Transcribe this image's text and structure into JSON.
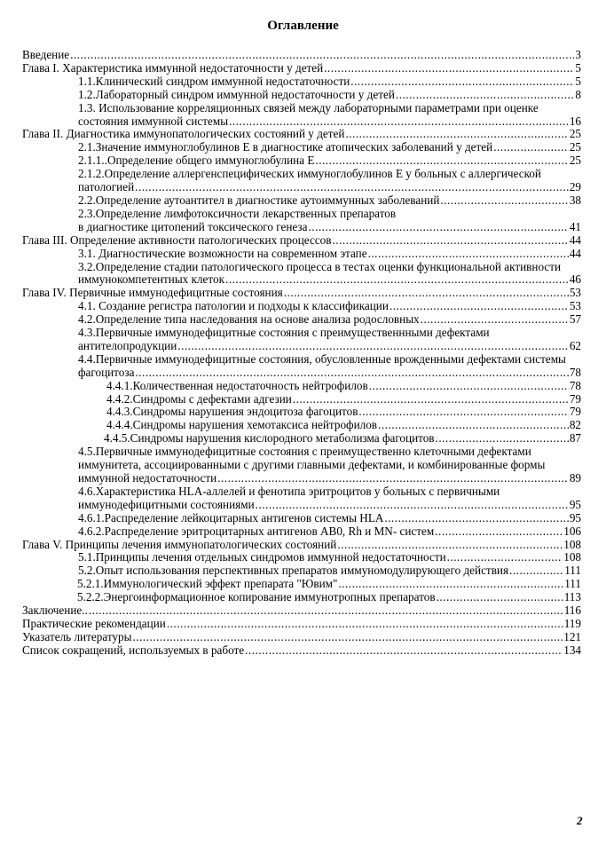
{
  "title": "Оглавление",
  "page_number": "2",
  "entries": [
    {
      "level": 1,
      "lines": [
        "Введение"
      ],
      "page": "3"
    },
    {
      "level": 1,
      "lines": [
        "Глава I. Характеристика иммунной недостаточности у детей"
      ],
      "page": "5"
    },
    {
      "level": 2,
      "lines": [
        "1.1.Клинический  синдром  иммунной  недостаточности"
      ],
      "page": "5"
    },
    {
      "level": 2,
      "lines": [
        "1.2.Лабораторный синдром иммунной недостаточности у детей"
      ],
      "page": "8"
    },
    {
      "level": 2,
      "lines": [
        "1.3. Использование корреляционных связей между лабораторными параметрами при оценке",
        "состояния иммунной системы"
      ],
      "page": "16"
    },
    {
      "level": 1,
      "lines": [
        "Глава II. Диагностика иммунопатологических состояний у детей "
      ],
      "page": "25"
    },
    {
      "level": 2,
      "lines": [
        "2.1.Значение иммуноглобулинов Е в диагностике атопических заболеваний у детей"
      ],
      "page": "25"
    },
    {
      "level": 2,
      "lines": [
        "2.1.1..Определение общего иммуноглобулина Е"
      ],
      "page": "25"
    },
    {
      "level": 2,
      "lines": [
        "2.1.2.Определение аллергенспецифических иммуноглобулинов Е у больных с аллергической",
        "патологией"
      ],
      "page": "29"
    },
    {
      "level": 2,
      "lines": [
        "2.2.Определение аутоантител в диагностике аутоиммунных заболеваний"
      ],
      "page": "38"
    },
    {
      "level": 2,
      "lines": [
        "2.3.Определение лимфотоксичности лекарственных препаратов",
        "в диагностике цитопений токсического генеза"
      ],
      "page": "41"
    },
    {
      "level": 1,
      "lines": [
        "Глава III. Определение активности патологических процессов "
      ],
      "page": "44"
    },
    {
      "level": 2,
      "lines": [
        "3.1. Диагностические возможности на современном этапе"
      ],
      "page": "44"
    },
    {
      "level": 2,
      "lines": [
        "3.2.Определение стадии патологического процесса в тестах оценки функциональной активности",
        "иммунокомпетентных  клеток"
      ],
      "page": "46"
    },
    {
      "level": 1,
      "lines": [
        "Глава IV. Первичные иммунодефицитные состояния"
      ],
      "page": "53"
    },
    {
      "level": 2,
      "lines": [
        "4.1. Создание регистра патологии и подходы к классификации"
      ],
      "page": "53"
    },
    {
      "level": 2,
      "lines": [
        "4.2.Определение типа наследования на основе анализа  родословных"
      ],
      "page": "57"
    },
    {
      "level": 2,
      "lines": [
        "4.3.Первичные иммунодефицитные состояния с преимущественнными дефектами",
        "антителопродукции"
      ],
      "page": "62"
    },
    {
      "level": 2,
      "lines": [
        "4.4.Первичные иммунодефицитные состояния, обусловленные врожденными дефектами системы",
        "фагоцитоза"
      ],
      "page": "78"
    },
    {
      "level": 3,
      "lines": [
        "4.4.1.Количественная  недостаточность  нейтрофилов"
      ],
      "page": "78"
    },
    {
      "level": 3,
      "lines": [
        "4.4.2.Синдромы  с  дефектами  адгезии"
      ],
      "page": "79"
    },
    {
      "level": 3,
      "lines": [
        "4.4.3.Синдромы  нарушения  эндоцитоза  фагоцитов"
      ],
      "page": "79"
    },
    {
      "level": 3,
      "lines": [
        "4.4.4.Синдромы  нарушения  хемотаксиса  нейтрофилов"
      ],
      "page": "82"
    },
    {
      "level": 4,
      "lines": [
        "4.4.5.Синдромы   нарушения  кислородного  метаболизма  фагоцитов"
      ],
      "page": "87"
    },
    {
      "level": 2,
      "lines": [
        "4.5.Первичные иммунодефицитные состояния с преимущественно клеточными дефектами",
        "иммунитета, ассоциированными с другими главными дефектами, и комбинированные формы",
        "иммунной  недостаточности"
      ],
      "page": "89"
    },
    {
      "level": 2,
      "lines": [
        "4.6.Характеристика HLA-аллелей и фенотипа эритроцитов у больных с первичными",
        "иммунодефицитными  состояниями"
      ],
      "page": "95"
    },
    {
      "level": 2,
      "lines": [
        "4.6.1.Распределение лейкоцитарных антигенов системы  HLA"
      ],
      "page": "95"
    },
    {
      "level": 2,
      "lines": [
        "4.6.2.Распределение эритроцитарных антигенов АВ0, Rh и MN- систем"
      ],
      "page": "106"
    },
    {
      "level": 1,
      "lines": [
        "Глава V. Принципы лечения иммунопатологических состояний"
      ],
      "page": "108"
    },
    {
      "level": 2,
      "lines": [
        "5.1.Принципы лечения отдельных синдромов иммунной недостаточности"
      ],
      "page": "108"
    },
    {
      "level": 2,
      "lines": [
        "5.2.Опыт использования перспективных препаратов иммуномодулирующего действия"
      ],
      "page": "111"
    },
    {
      "level": 5,
      "lines": [
        "5.2.1.Иммунологический эффект препарата \"Ювим\""
      ],
      "page": "111"
    },
    {
      "level": 5,
      "lines": [
        "5.2.2.Энергоинформационное копирование  иммунотропных  препаратов"
      ],
      "page": "113"
    },
    {
      "level": 1,
      "lines": [
        "Заключение.. "
      ],
      "page": "116"
    },
    {
      "level": 1,
      "lines": [
        "Практические  рекомендации"
      ],
      "page": "119"
    },
    {
      "level": 1,
      "lines": [
        "Указатель  литературы"
      ],
      "page": "121"
    },
    {
      "level": 1,
      "lines": [
        "Список сокращений, используемых в работе"
      ],
      "page": "134"
    }
  ]
}
